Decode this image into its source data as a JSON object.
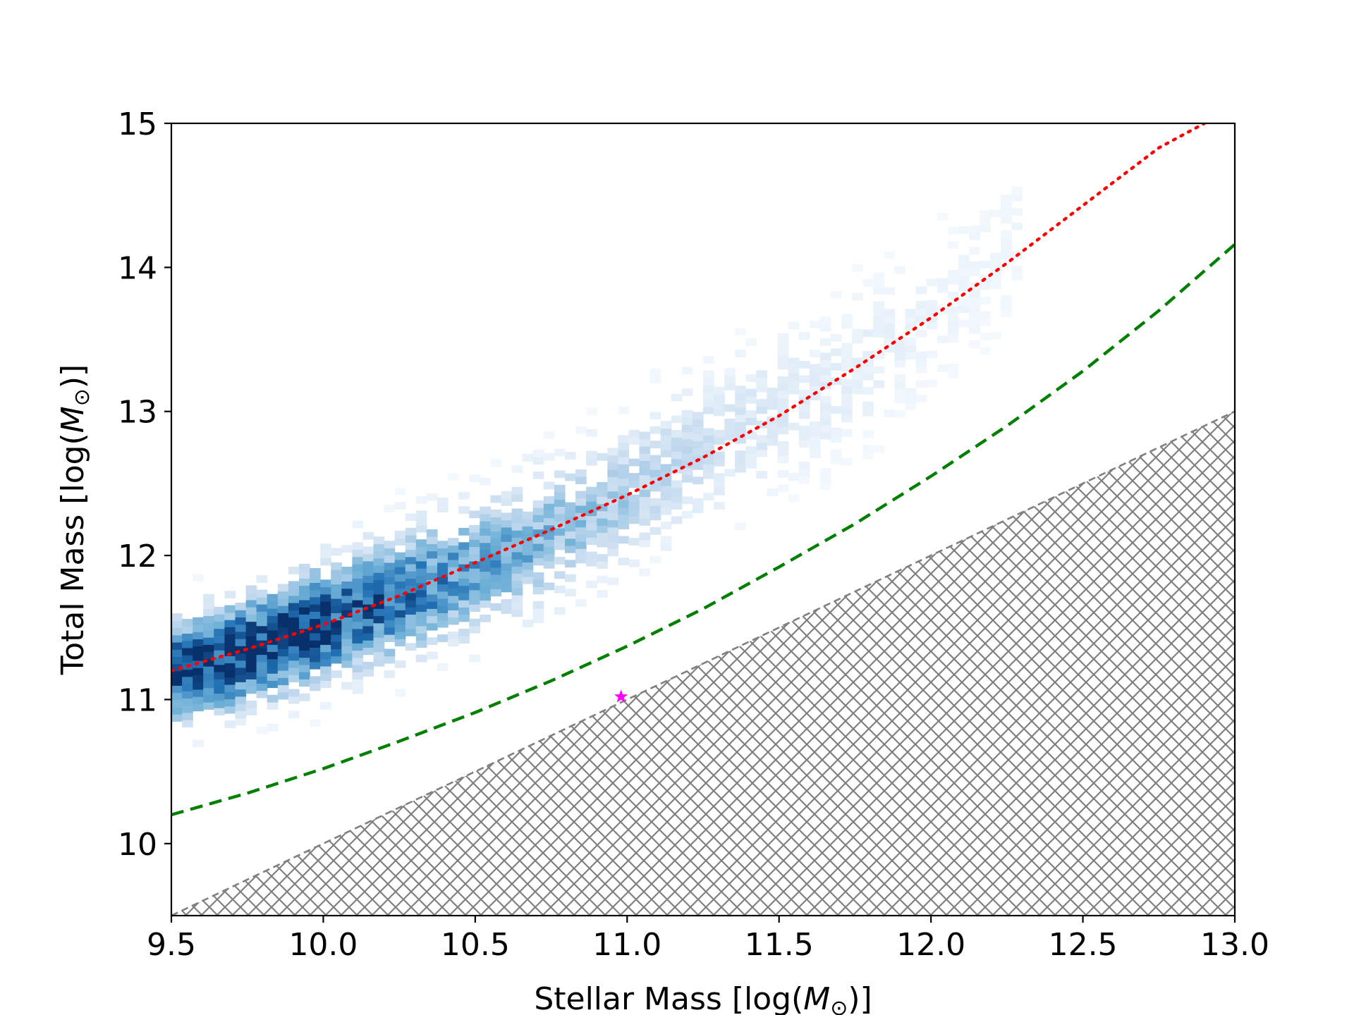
{
  "chart_data": {
    "type": "heatmap",
    "title": "",
    "xlabel_text": "Stellar Mass [log(",
    "xlabel_math": "M",
    "xlabel_sub": "⊙",
    "xlabel_close": ")]",
    "ylabel_text": "Total Mass [log(",
    "ylabel_math": "M",
    "ylabel_sub": "⊙",
    "ylabel_close": ")]",
    "xlim": [
      9.5,
      13.0
    ],
    "ylim": [
      9.5,
      15.0
    ],
    "x_ticks": [
      "9.5",
      "10.0",
      "10.5",
      "11.0",
      "11.5",
      "12.0",
      "12.5",
      "13.0"
    ],
    "y_ticks": [
      "10",
      "11",
      "12",
      "13",
      "14",
      "15"
    ],
    "grid": false,
    "legend": "none",
    "colormap": "Blues",
    "density_ridge": [
      {
        "x": 9.5,
        "y": 11.2,
        "intensity": 0.9
      },
      {
        "x": 9.7,
        "y": 11.3,
        "intensity": 0.95
      },
      {
        "x": 9.9,
        "y": 11.45,
        "intensity": 1.0
      },
      {
        "x": 10.1,
        "y": 11.6,
        "intensity": 0.85
      },
      {
        "x": 10.3,
        "y": 11.75,
        "intensity": 0.7
      },
      {
        "x": 10.5,
        "y": 11.9,
        "intensity": 0.55
      },
      {
        "x": 10.7,
        "y": 12.1,
        "intensity": 0.45
      },
      {
        "x": 10.9,
        "y": 12.3,
        "intensity": 0.35
      },
      {
        "x": 11.1,
        "y": 12.55,
        "intensity": 0.25
      },
      {
        "x": 11.3,
        "y": 12.8,
        "intensity": 0.18
      },
      {
        "x": 11.5,
        "y": 13.0,
        "intensity": 0.13
      },
      {
        "x": 11.7,
        "y": 13.2,
        "intensity": 0.1
      },
      {
        "x": 11.9,
        "y": 13.5,
        "intensity": 0.07
      },
      {
        "x": 12.1,
        "y": 13.85,
        "intensity": 0.05
      },
      {
        "x": 12.3,
        "y": 14.2,
        "intensity": 0.04
      }
    ],
    "series": [
      {
        "style": "dotted",
        "color": "#ff0000",
        "x": [
          9.5,
          9.75,
          10.0,
          10.25,
          10.5,
          10.75,
          11.0,
          11.25,
          11.5,
          11.75,
          12.0,
          12.25,
          12.5,
          12.75,
          12.9
        ],
        "y": [
          11.2,
          11.35,
          11.52,
          11.72,
          11.95,
          12.18,
          12.42,
          12.68,
          12.97,
          13.3,
          13.65,
          14.03,
          14.43,
          14.83,
          15.0
        ]
      },
      {
        "style": "dashed",
        "color": "#008000",
        "x": [
          9.5,
          9.75,
          10.0,
          10.25,
          10.5,
          10.75,
          11.0,
          11.25,
          11.5,
          11.75,
          12.0,
          12.25,
          12.5,
          12.75,
          13.0
        ],
        "y": [
          10.2,
          10.35,
          10.52,
          10.71,
          10.91,
          11.13,
          11.37,
          11.63,
          11.92,
          12.22,
          12.55,
          12.9,
          13.28,
          13.7,
          14.16
        ]
      }
    ],
    "excluded_region": {
      "boundary_color": "#808080",
      "hatch": "cross",
      "x": [
        9.5,
        10.0,
        10.5,
        11.0,
        11.5,
        12.0,
        12.5,
        13.0
      ],
      "y": [
        9.5,
        10.0,
        10.5,
        11.0,
        11.5,
        12.0,
        12.5,
        13.0
      ]
    },
    "marker": {
      "x": 10.98,
      "y": 11.02,
      "symbol": "star",
      "color": "#ff00ff"
    }
  }
}
